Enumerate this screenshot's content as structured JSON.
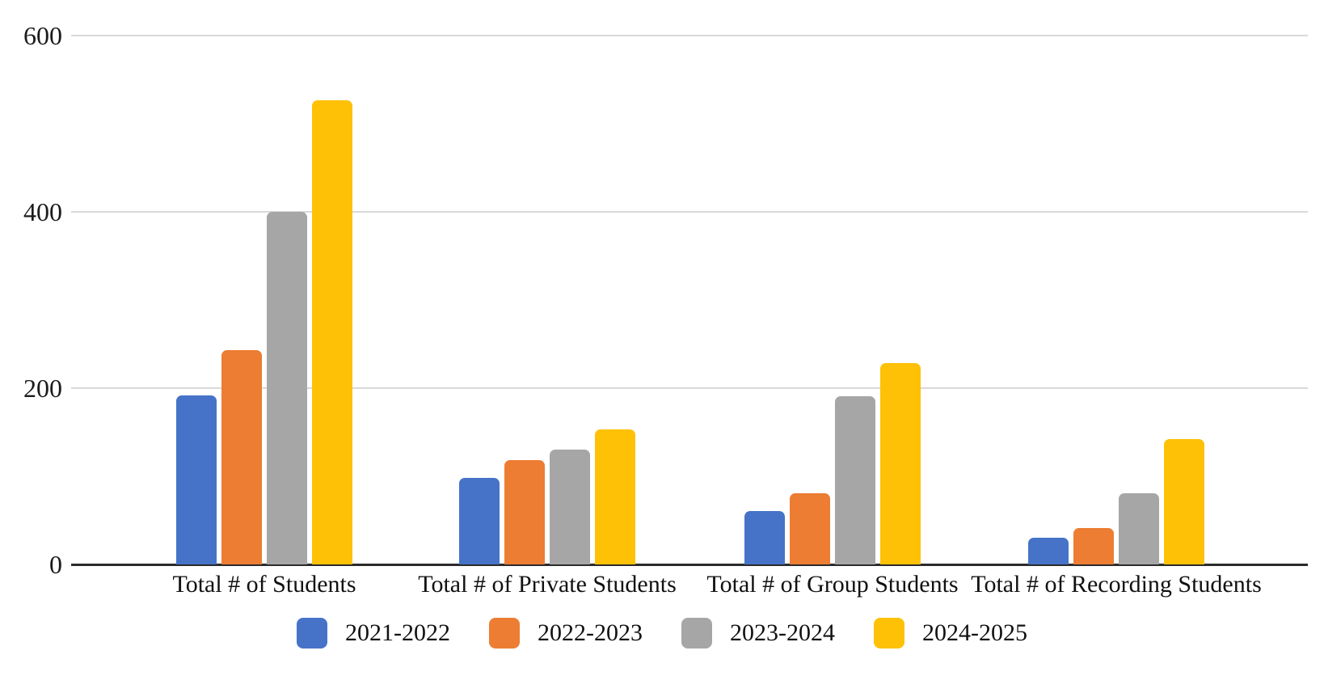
{
  "chart": {
    "background_color": "#ffffff",
    "gridline_color": "#d9d9d9",
    "axis_line_color": "#2b2b2b",
    "text_color": "#1b1b1b"
  },
  "chart_data": {
    "type": "bar",
    "title": "",
    "xlabel": "",
    "ylabel": "",
    "categories": [
      "Total # of Students",
      "Total # of Private Students",
      "Total # of Group Students",
      "Total # of Recording Students"
    ],
    "series": [
      {
        "name": "2021-2022",
        "color": "#4673C8",
        "values": [
          192,
          98,
          61,
          30
        ]
      },
      {
        "name": "2022-2023",
        "color": "#EC7D33",
        "values": [
          243,
          118,
          81,
          41
        ]
      },
      {
        "name": "2023-2024",
        "color": "#A6A6A6",
        "values": [
          400,
          130,
          191,
          81
        ]
      },
      {
        "name": "2024-2025",
        "color": "#FEC106",
        "values": [
          527,
          153,
          228,
          142
        ]
      }
    ],
    "ylim": [
      0,
      600
    ],
    "yticks": [
      0,
      200,
      400,
      600
    ],
    "grid": true,
    "legend_position": "bottom"
  }
}
